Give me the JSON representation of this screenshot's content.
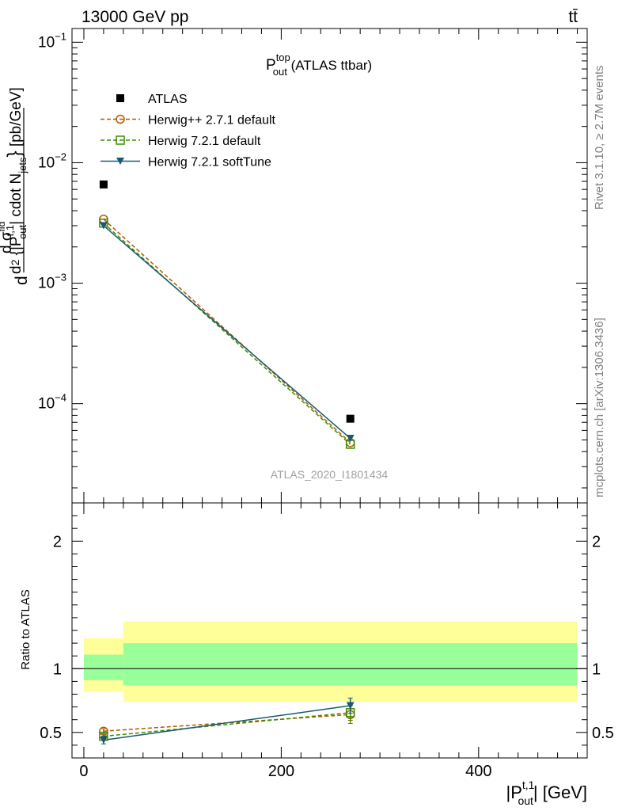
{
  "header": {
    "energy_label": "13000 GeV pp",
    "process_label": "tt̄"
  },
  "side_text": {
    "rivet": "Rivet 3.1.10, ≥ 2.7M events",
    "mcplots": "mcplots.cern.ch [arXiv:1306.3436]"
  },
  "analysis_id": "ATLAS_2020_I1801434",
  "chart_data": [
    {
      "panel": "main",
      "type": "scatter",
      "title_main": "P",
      "title_sup": "top",
      "title_sub": "out",
      "title_rest": " (ATLAS ttbar)",
      "ylabel": "d d σ^{fid} / d² {|P_out^{t,1}| cdot N_jets} [pb/GeV]",
      "yscale": "log",
      "ylim": [
        1.5e-05,
        0.13
      ],
      "xlim": [
        -12,
        510
      ],
      "y_ticks": [
        {
          "label": "10",
          "exp": "−1",
          "value": 0.1
        },
        {
          "label": "10",
          "exp": "−2",
          "value": 0.01
        },
        {
          "label": "10",
          "exp": "−3",
          "value": 0.001
        },
        {
          "label": "10",
          "exp": "−4",
          "value": 0.0001
        }
      ],
      "legend_position": "top-left",
      "series": [
        {
          "name": "ATLAS",
          "color": "#000000",
          "marker": "filled-square",
          "line": "none",
          "x": [
            20,
            270
          ],
          "y": [
            0.0066,
            7.5e-05
          ]
        },
        {
          "name": "Herwig++ 2.7.1 default",
          "color": "#b35900",
          "marker": "open-circle",
          "line": "dashed",
          "x": [
            20,
            270
          ],
          "y": [
            0.0034,
            4.75e-05
          ]
        },
        {
          "name": "Herwig 7.2.1 default",
          "color": "#3c8c00",
          "marker": "open-square",
          "line": "dashed",
          "x": [
            20,
            270
          ],
          "y": [
            0.00315,
            4.6e-05
          ]
        },
        {
          "name": "Herwig 7.2.1 softTune",
          "color": "#1a5a6e",
          "marker": "filled-triangle-down",
          "line": "solid",
          "x": [
            20,
            270
          ],
          "y": [
            0.003,
            5.15e-05
          ]
        }
      ]
    },
    {
      "panel": "ratio",
      "type": "line",
      "ylabel": "Ratio to ATLAS",
      "xlabel_main": "|P",
      "xlabel_sup": "t,1",
      "xlabel_sub": "out",
      "xlabel_rest": "| [GeV]",
      "ylim": [
        0.3,
        2.3
      ],
      "xlim": [
        -12,
        510
      ],
      "x_ticks": [
        0,
        200,
        400
      ],
      "y_ticks": [
        0.5,
        1,
        2
      ],
      "bands": [
        {
          "x": [
            0,
            40
          ],
          "inner": [
            0.91,
            1.11
          ],
          "outer": [
            0.82,
            1.24
          ]
        },
        {
          "x": [
            40,
            500
          ],
          "inner": [
            0.87,
            1.2
          ],
          "outer": [
            0.74,
            1.37
          ]
        }
      ],
      "band_colors": {
        "inner": "#99ff99",
        "outer": "#ffff99"
      },
      "series": [
        {
          "name": "Herwig++ 2.7.1 default",
          "color": "#b35900",
          "marker": "open-circle",
          "line": "dashed",
          "x": [
            20,
            270
          ],
          "y": [
            0.51,
            0.64
          ],
          "err": [
            0.02,
            0.07
          ]
        },
        {
          "name": "Herwig 7.2.1 default",
          "color": "#3c8c00",
          "marker": "open-square",
          "line": "dashed",
          "x": [
            20,
            270
          ],
          "y": [
            0.47,
            0.655
          ],
          "err": [
            0.02,
            0.06
          ]
        },
        {
          "name": "Herwig 7.2.1 softTune",
          "color": "#1a5a6e",
          "marker": "filled-triangle-down",
          "line": "solid",
          "x": [
            20,
            270
          ],
          "y": [
            0.44,
            0.71
          ],
          "err": [
            0.03,
            0.06
          ]
        }
      ]
    }
  ]
}
